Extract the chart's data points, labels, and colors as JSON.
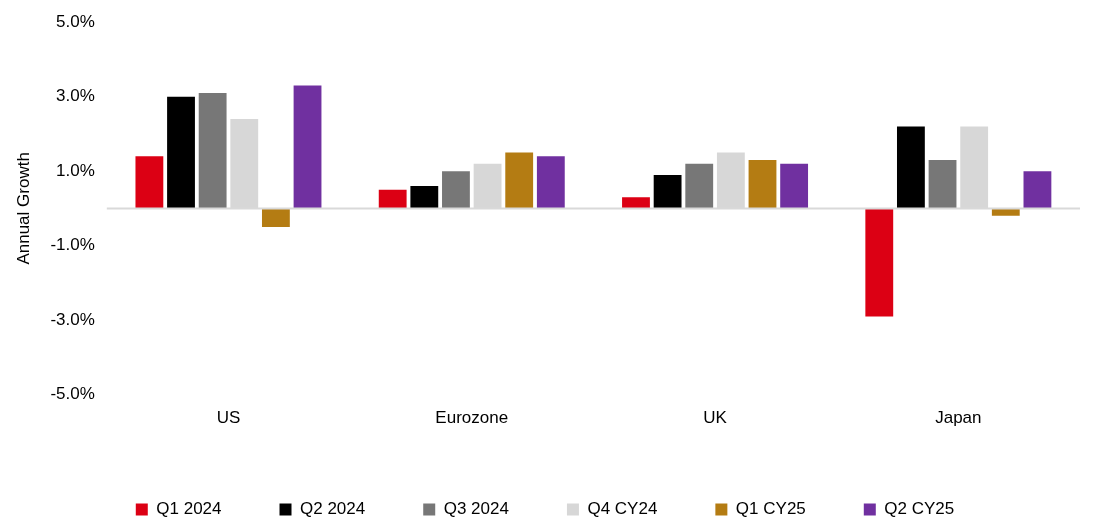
{
  "chart_data": {
    "type": "bar",
    "ylabel": "Annual Growth",
    "categories": [
      "US",
      "Eurozone",
      "UK",
      "Japan"
    ],
    "series": [
      {
        "name": "Q1 2024",
        "color": "#dc0014",
        "values": [
          1.4,
          0.5,
          0.3,
          -2.9
        ]
      },
      {
        "name": "Q2 2024",
        "color": "#000000",
        "values": [
          3.0,
          0.6,
          0.9,
          2.2
        ]
      },
      {
        "name": "Q3 2024",
        "color": "#777777",
        "values": [
          3.1,
          1.0,
          1.2,
          1.3
        ]
      },
      {
        "name": "Q4 CY24",
        "color": "#d7d7d7",
        "values": [
          2.4,
          1.2,
          1.5,
          2.2
        ]
      },
      {
        "name": "Q1 CY25",
        "color": "#b47c13",
        "values": [
          -0.5,
          1.5,
          1.3,
          -0.2
        ]
      },
      {
        "name": "Q2 CY25",
        "color": "#7030a0",
        "values": [
          3.3,
          1.4,
          1.2,
          1.0
        ]
      }
    ],
    "ylim": [
      -5,
      5
    ],
    "yticks": [
      {
        "value": -5,
        "label": "-5.0%"
      },
      {
        "value": -3,
        "label": "-3.0%"
      },
      {
        "value": -1,
        "label": "-1.0%"
      },
      {
        "value": 1,
        "label": "1.0%"
      },
      {
        "value": 3,
        "label": "3.0%"
      },
      {
        "value": 5,
        "label": "5.0%"
      }
    ],
    "grid": false,
    "legend": "bottom"
  }
}
